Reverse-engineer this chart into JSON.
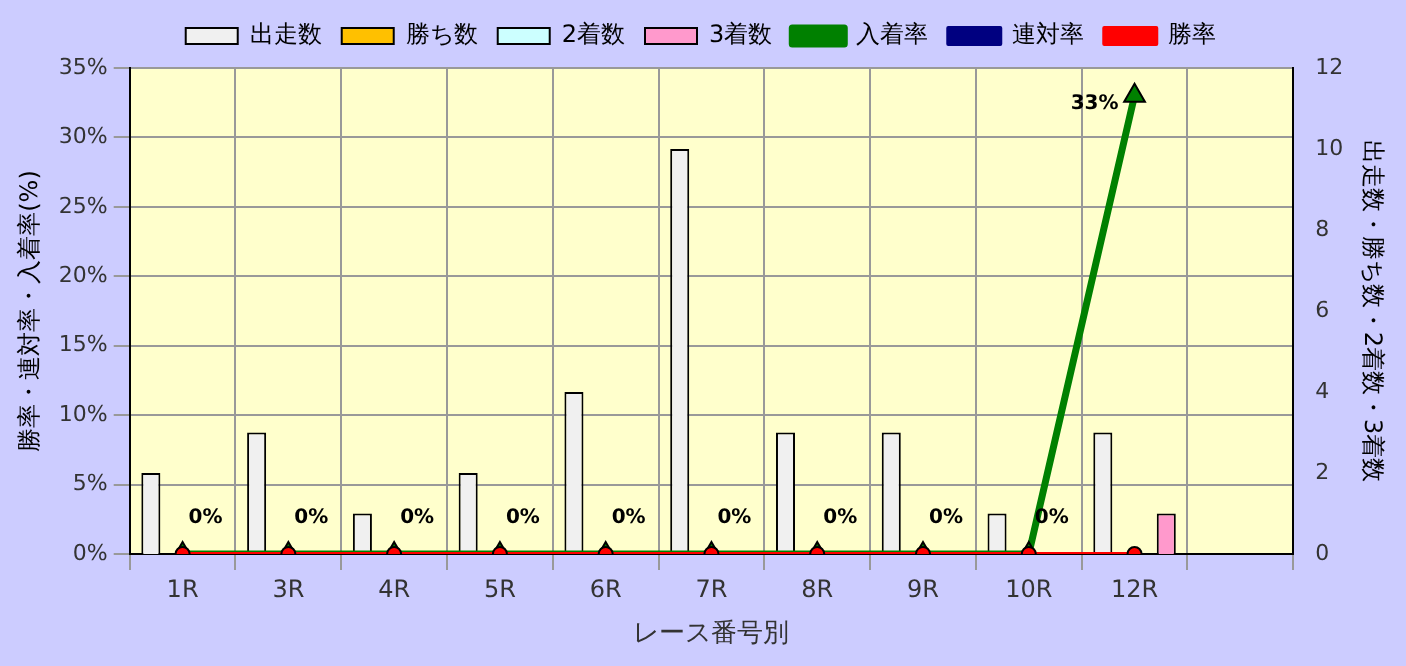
{
  "chart_data": {
    "type": "bar",
    "xlabel": "レース番号別",
    "ylabel": "勝率・連対率・入着率(%)",
    "y2label": "出走数・勝ち数・2着数・3着数",
    "categories": [
      "1R",
      "3R",
      "4R",
      "5R",
      "6R",
      "7R",
      "8R",
      "9R",
      "10R",
      "12R",
      null
    ],
    "series": [
      {
        "name": "出走数",
        "type": "bar",
        "axis": "y2",
        "color": "#f0f0f0",
        "values": [
          2,
          3,
          1,
          2,
          4,
          10,
          3,
          3,
          1,
          3,
          null
        ]
      },
      {
        "name": "勝ち数",
        "type": "bar",
        "axis": "y2",
        "color": "#ffc000",
        "values": [
          0,
          0,
          0,
          0,
          0,
          0,
          0,
          0,
          0,
          0,
          null
        ]
      },
      {
        "name": "2着数",
        "type": "bar",
        "axis": "y2",
        "color": "#ccffff",
        "values": [
          0,
          0,
          0,
          0,
          0,
          0,
          0,
          0,
          0,
          0,
          null
        ]
      },
      {
        "name": "3着数",
        "type": "bar",
        "axis": "y2",
        "color": "#ff99cc",
        "values": [
          0,
          0,
          0,
          0,
          0,
          0,
          0,
          0,
          0,
          1,
          null
        ]
      },
      {
        "name": "入着率",
        "type": "line",
        "axis": "y",
        "color": "#008000",
        "marker": "triangle",
        "values": [
          0,
          0,
          0,
          0,
          0,
          0,
          0,
          0,
          0,
          33,
          null
        ],
        "value_labels": [
          "0%",
          "0%",
          "0%",
          "0%",
          "0%",
          "0%",
          "0%",
          "0%",
          "0%",
          "33%",
          null
        ]
      },
      {
        "name": "連対率",
        "type": "line",
        "axis": "y",
        "color": "#000080",
        "marker": "diamond",
        "values": [
          null,
          null,
          null,
          null,
          null,
          null,
          null,
          null,
          null,
          null,
          null
        ]
      },
      {
        "name": "勝率",
        "type": "line",
        "axis": "y",
        "color": "#ff0000",
        "marker": "circle",
        "values": [
          0,
          0,
          0,
          0,
          0,
          0,
          0,
          0,
          0,
          0,
          null
        ]
      }
    ],
    "ylim": [
      0,
      35
    ],
    "yticks": [
      {
        "value": 0,
        "label": "0%"
      },
      {
        "value": 5,
        "label": "5%"
      },
      {
        "value": 10,
        "label": "10%"
      },
      {
        "value": 15,
        "label": "15%"
      },
      {
        "value": 20,
        "label": "20%"
      },
      {
        "value": 25,
        "label": "25%"
      },
      {
        "value": 30,
        "label": "30%"
      },
      {
        "value": 35,
        "label": "35%"
      }
    ],
    "y2lim": [
      0,
      12
    ],
    "y2ticks": [
      0,
      2,
      4,
      6,
      8,
      10,
      12
    ],
    "grid": true,
    "legend": "top",
    "line_style": "solid"
  }
}
